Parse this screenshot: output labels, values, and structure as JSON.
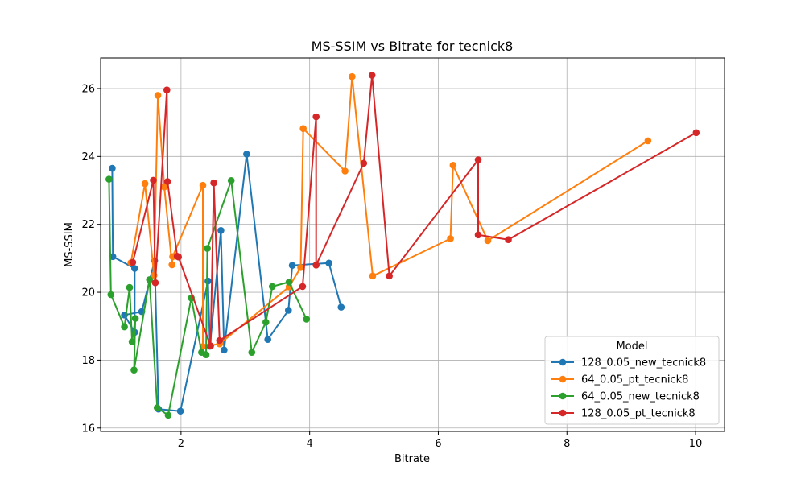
{
  "chart_data": {
    "type": "line",
    "title": "MS-SSIM vs Bitrate for tecnick8",
    "xlabel": "Bitrate",
    "ylabel": "MS-SSIM",
    "xlim": [
      0.75,
      10.45
    ],
    "ylim": [
      15.9,
      26.9
    ],
    "xticks": [
      2,
      4,
      6,
      8,
      10
    ],
    "yticks": [
      16,
      18,
      20,
      22,
      24,
      26
    ],
    "grid": true,
    "legend": {
      "title": "Model",
      "placement": "lower-right"
    },
    "series": [
      {
        "name": "128_0.05_new_tecnick8",
        "color": "#1f77b4",
        "x": [
          0.93,
          0.94,
          1.28,
          1.28,
          1.12,
          1.39,
          1.59,
          1.65,
          1.99,
          2.42,
          2.45,
          2.62,
          2.67,
          3.02,
          3.35,
          3.67,
          3.73,
          4.3,
          4.49
        ],
        "y": [
          23.65,
          21.05,
          20.7,
          18.82,
          19.33,
          19.43,
          20.93,
          16.56,
          16.5,
          20.33,
          18.41,
          21.82,
          18.3,
          24.07,
          18.61,
          19.47,
          20.79,
          20.86,
          19.56
        ]
      },
      {
        "name": "64_0.05_pt_tecnick8",
        "color": "#ff7f0e",
        "x": [
          1.22,
          1.44,
          1.58,
          1.64,
          1.74,
          1.86,
          1.87,
          2.34,
          2.34,
          2.6,
          3.68,
          3.86,
          3.9,
          4.55,
          4.66,
          4.98,
          6.19,
          6.23,
          6.77,
          9.26
        ],
        "y": [
          20.87,
          23.2,
          20.5,
          25.8,
          23.1,
          20.81,
          21.05,
          23.15,
          18.4,
          18.48,
          20.16,
          20.73,
          24.82,
          23.57,
          26.35,
          20.48,
          21.58,
          23.74,
          21.52,
          24.46
        ]
      },
      {
        "name": "64_0.05_new_tecnick8",
        "color": "#2ca02c",
        "x": [
          0.88,
          0.91,
          1.12,
          1.2,
          1.24,
          1.29,
          1.27,
          1.51,
          1.63,
          1.8,
          2.16,
          2.32,
          2.39,
          2.41,
          2.78,
          3.1,
          3.32,
          3.42,
          3.68,
          3.95
        ],
        "y": [
          23.33,
          19.93,
          18.98,
          20.14,
          18.54,
          19.23,
          17.71,
          20.37,
          16.6,
          16.38,
          19.83,
          18.23,
          18.16,
          21.29,
          23.29,
          18.23,
          19.12,
          20.17,
          20.3,
          19.21
        ]
      },
      {
        "name": "128_0.05_pt_tecnick8",
        "color": "#d62728",
        "x": [
          1.25,
          1.57,
          1.6,
          1.78,
          1.79,
          1.94,
          1.96,
          2.46,
          2.51,
          2.6,
          3.89,
          4.1,
          4.1,
          4.84,
          4.97,
          5.24,
          6.62,
          6.62,
          7.09,
          10.01
        ],
        "y": [
          20.88,
          23.3,
          20.28,
          25.96,
          23.26,
          21.06,
          21.04,
          18.42,
          23.22,
          18.58,
          20.17,
          25.17,
          20.8,
          23.8,
          26.39,
          20.48,
          23.9,
          21.69,
          21.55,
          24.7
        ]
      }
    ]
  }
}
